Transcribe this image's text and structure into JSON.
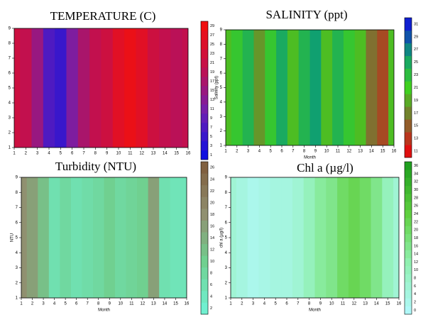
{
  "chart_data": [
    {
      "type": "contour",
      "title": "TEMPERATURE (C)",
      "x": [
        1,
        2,
        3,
        4,
        5,
        6,
        7,
        8,
        9,
        10,
        11,
        12,
        13,
        14,
        15,
        16
      ],
      "values": [
        22,
        20,
        15,
        7,
        5,
        12,
        17,
        20,
        22,
        26,
        28,
        26,
        22,
        20,
        19,
        20
      ],
      "xlim": [
        1,
        16
      ],
      "ylim": [
        1,
        9
      ],
      "xticks": [
        1,
        2,
        3,
        4,
        5,
        6,
        7,
        8,
        9,
        10,
        11,
        12,
        13,
        14,
        15,
        16
      ],
      "yticks": [
        1,
        2,
        3,
        4,
        5,
        6,
        7,
        8,
        9
      ],
      "zlim": [
        1,
        29
      ],
      "zticks": [
        1,
        3,
        5,
        7,
        9,
        11,
        13,
        15,
        17,
        19,
        21,
        23,
        25,
        27,
        29
      ],
      "colors": [
        "#1010e0",
        "#7020b0",
        "#c01050",
        "#f01010"
      ]
    },
    {
      "type": "contour",
      "title": "SALINITY (ppt)",
      "xlabel": "Month",
      "ylabel": "Salinity (ppt)",
      "x": [
        1,
        2,
        3,
        4,
        5,
        6,
        7,
        8,
        9,
        10,
        11,
        12,
        13,
        14,
        15,
        16
      ],
      "values": [
        20,
        22,
        24,
        18,
        22,
        25,
        20,
        24,
        26,
        20,
        24,
        22,
        20,
        16,
        14,
        20
      ],
      "xlim": [
        1,
        16
      ],
      "ylim": [
        1,
        9
      ],
      "xticks": [
        1,
        2,
        3,
        4,
        5,
        6,
        7,
        8,
        9,
        10,
        11,
        12,
        13,
        14,
        15,
        16
      ],
      "yticks": [
        1,
        2,
        3,
        4,
        5,
        6,
        7,
        8,
        9
      ],
      "zlim": [
        11,
        31
      ],
      "zticks": [
        11,
        13,
        15,
        17,
        19,
        21,
        23,
        25,
        27,
        29,
        31
      ],
      "colors": [
        "#e01010",
        "#807030",
        "#40d020",
        "#10a070",
        "#1020d0"
      ]
    },
    {
      "type": "contour",
      "title": "Turbidity (NTU)",
      "xlabel": "Month",
      "ylabel": "NTU",
      "x": [
        1,
        2,
        3,
        4,
        5,
        6,
        7,
        8,
        9,
        10,
        11,
        12,
        13,
        14,
        15,
        16
      ],
      "values": [
        18,
        16,
        12,
        6,
        8,
        6,
        7,
        8,
        10,
        8,
        9,
        10,
        16,
        6,
        5,
        5
      ],
      "xlim": [
        1,
        16
      ],
      "ylim": [
        1,
        9
      ],
      "xticks": [
        1,
        2,
        3,
        4,
        5,
        6,
        7,
        8,
        9,
        10,
        11,
        12,
        13,
        14,
        15,
        16
      ],
      "yticks": [
        1,
        2,
        3,
        4,
        5,
        6,
        7,
        8,
        9
      ],
      "zlim": [
        2,
        26
      ],
      "zticks": [
        2,
        4,
        6,
        8,
        10,
        12,
        14,
        16,
        18,
        20,
        22,
        24,
        26
      ],
      "colors": [
        "#70f0d0",
        "#70d090",
        "#909070",
        "#806040"
      ]
    },
    {
      "type": "contour",
      "title": "Chl a (µg/l)",
      "xlabel": "Month",
      "ylabel": "chl a (µg/l)",
      "x": [
        1,
        2,
        3,
        4,
        5,
        6,
        7,
        8,
        9,
        10,
        11,
        12,
        13,
        14,
        15,
        16
      ],
      "values": [
        6,
        4,
        2,
        3,
        4,
        4,
        6,
        10,
        14,
        16,
        20,
        22,
        20,
        16,
        10,
        6
      ],
      "xlim": [
        1,
        16
      ],
      "ylim": [
        1,
        9
      ],
      "xticks": [
        1,
        2,
        3,
        4,
        5,
        6,
        7,
        8,
        9,
        10,
        11,
        12,
        13,
        14,
        15,
        16
      ],
      "yticks": [
        1,
        2,
        3,
        4,
        5,
        6,
        7,
        8,
        9
      ],
      "zlim": [
        0,
        36
      ],
      "zticks": [
        0,
        2,
        4,
        6,
        8,
        10,
        12,
        14,
        16,
        18,
        20,
        22,
        24,
        26,
        28,
        30,
        32,
        34,
        36
      ],
      "colors": [
        "#b0f8f8",
        "#90f0b0",
        "#60d040",
        "#20a020"
      ]
    }
  ]
}
